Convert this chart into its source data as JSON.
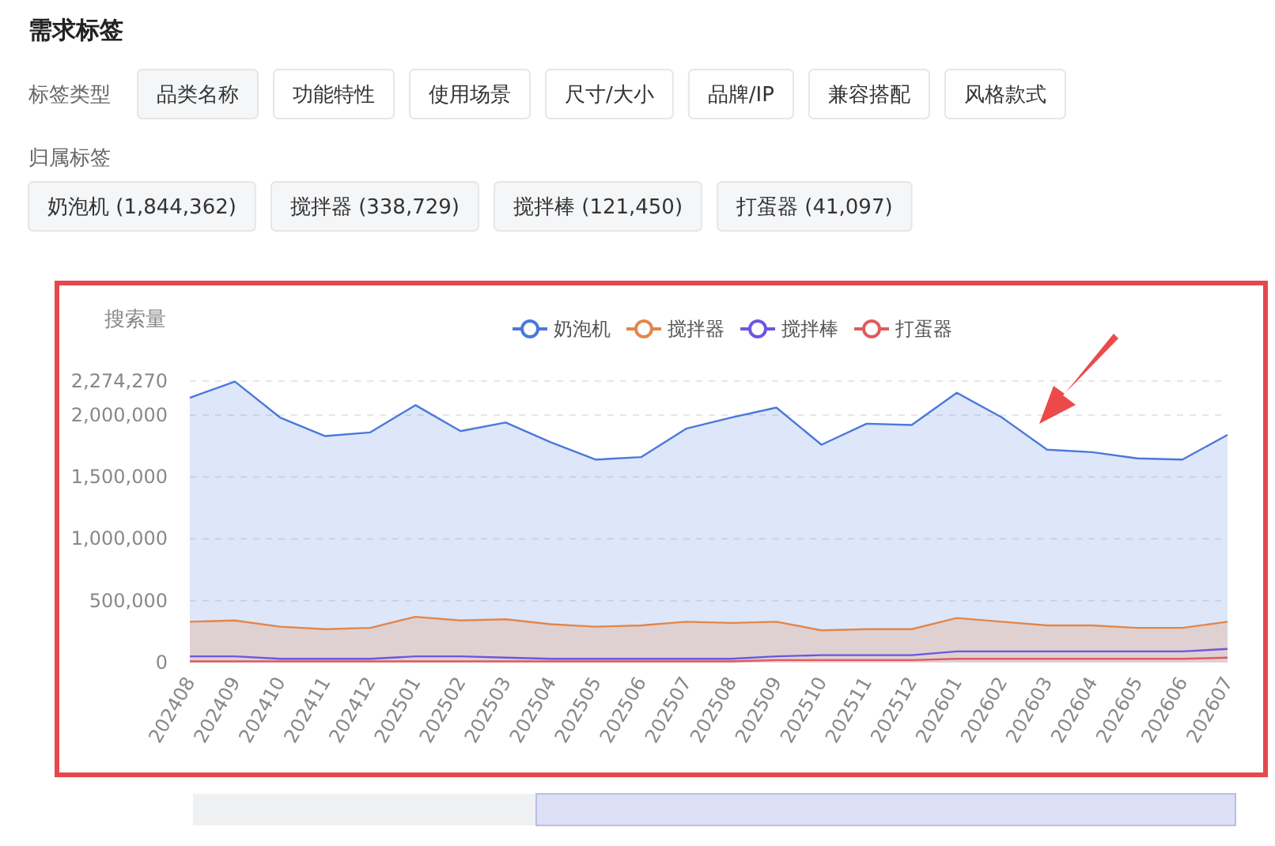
{
  "chart_data": {
    "type": "area",
    "title": "需求标签",
    "annotations": [
      "标签类型",
      "品类名称",
      "功能特性",
      "使用场景",
      "尺寸/大小",
      "品牌/IP",
      "兼容搭配",
      "风格款式",
      "归属标签",
      "奶泡机 (1,844,362)",
      "搅拌器 (338,729)",
      "搅拌棒 (121,450)",
      "打蛋器 (41,097)"
    ],
    "ylabel": "搜索量",
    "categories": [
      "202408",
      "202409",
      "202410",
      "202411",
      "202412",
      "202501",
      "202502",
      "202503",
      "202504",
      "202505",
      "202506",
      "202507",
      "202508",
      "202509",
      "202510",
      "202511",
      "202512",
      "202601",
      "202602",
      "202603",
      "202604",
      "202605",
      "202606",
      "202607"
    ],
    "series": [
      {
        "name": "奶泡机",
        "color": "#4a78dc",
        "values": [
          2140000,
          2270000,
          1980000,
          1830000,
          1860000,
          2080000,
          1870000,
          1940000,
          1780000,
          1640000,
          1660000,
          1890000,
          1980000,
          2060000,
          1760000,
          1930000,
          1920000,
          2180000,
          1980000,
          1720000,
          1700000,
          1650000,
          1640000,
          1840000
        ]
      },
      {
        "name": "搅拌器",
        "color": "#e3864a",
        "values": [
          330000,
          340000,
          290000,
          270000,
          280000,
          370000,
          340000,
          350000,
          310000,
          290000,
          300000,
          330000,
          320000,
          330000,
          260000,
          270000,
          270000,
          360000,
          330000,
          300000,
          300000,
          280000,
          280000,
          330000
        ]
      },
      {
        "name": "搅拌棒",
        "type": "line",
        "color": "#6a57e0",
        "values": [
          50000,
          50000,
          30000,
          30000,
          30000,
          50000,
          50000,
          40000,
          30000,
          30000,
          30000,
          30000,
          30000,
          50000,
          60000,
          60000,
          60000,
          90000,
          90000,
          90000,
          90000,
          90000,
          90000,
          110000
        ]
      },
      {
        "name": "打蛋器",
        "type": "line",
        "color": "#e05a5e",
        "values": [
          10000,
          10000,
          10000,
          10000,
          10000,
          10000,
          10000,
          10000,
          10000,
          10000,
          10000,
          10000,
          10000,
          20000,
          20000,
          20000,
          20000,
          30000,
          30000,
          30000,
          30000,
          30000,
          30000,
          40000
        ]
      }
    ],
    "ylim": [
      0,
      2274270
    ],
    "yticks": [
      {
        "value": 0,
        "label": "0"
      },
      {
        "value": 500000,
        "label": "500,000"
      },
      {
        "value": 1000000,
        "label": "1,000,000"
      },
      {
        "value": 1500000,
        "label": "1,500,000"
      },
      {
        "value": 2000000,
        "label": "2,000,000"
      },
      {
        "value": 2274270,
        "label": "2,274,270"
      }
    ],
    "grid": "y",
    "legend": "top"
  }
}
